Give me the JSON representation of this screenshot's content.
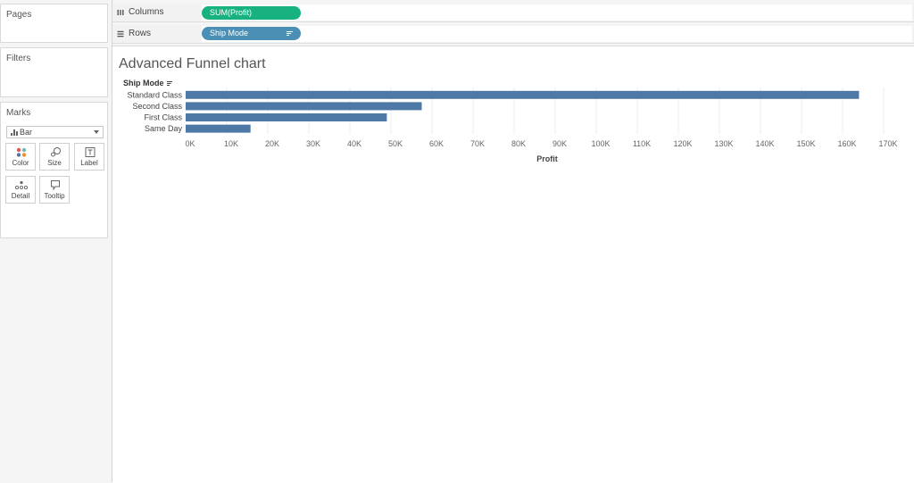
{
  "panels": {
    "pages_title": "Pages",
    "filters_title": "Filters",
    "marks_title": "Marks",
    "mark_type": "Bar",
    "mark_buttons": [
      {
        "label": "Color",
        "icon": "color-icon"
      },
      {
        "label": "Size",
        "icon": "size-icon"
      },
      {
        "label": "Label",
        "icon": "label-icon"
      },
      {
        "label": "Detail",
        "icon": "detail-icon"
      },
      {
        "label": "Tooltip",
        "icon": "tooltip-icon"
      }
    ]
  },
  "shelves": {
    "columns_label": "Columns",
    "columns_pill": "SUM(Profit)",
    "rows_label": "Rows",
    "rows_pill": "Ship Mode"
  },
  "colors": {
    "bar": "#4e79a7",
    "columns_pill": "#17b27f",
    "rows_pill": "#4b8fb4"
  },
  "viz": {
    "title": "Advanced Funnel chart"
  },
  "chart_data": {
    "type": "bar",
    "orientation": "horizontal",
    "title": "Advanced Funnel chart",
    "row_header": "Ship Mode",
    "categories": [
      "Standard Class",
      "Second Class",
      "First Class",
      "Same Day"
    ],
    "values": [
      164000,
      57500,
      49000,
      15800
    ],
    "xlabel": "Profit",
    "xlim": [
      0,
      170000
    ],
    "x_ticks": [
      0,
      10000,
      20000,
      30000,
      40000,
      50000,
      60000,
      70000,
      80000,
      90000,
      100000,
      110000,
      120000,
      130000,
      140000,
      150000,
      160000,
      170000
    ],
    "x_tick_labels": [
      "0K",
      "10K",
      "20K",
      "30K",
      "40K",
      "50K",
      "60K",
      "70K",
      "80K",
      "90K",
      "100K",
      "110K",
      "120K",
      "130K",
      "140K",
      "150K",
      "160K",
      "170K"
    ],
    "grid": true
  }
}
